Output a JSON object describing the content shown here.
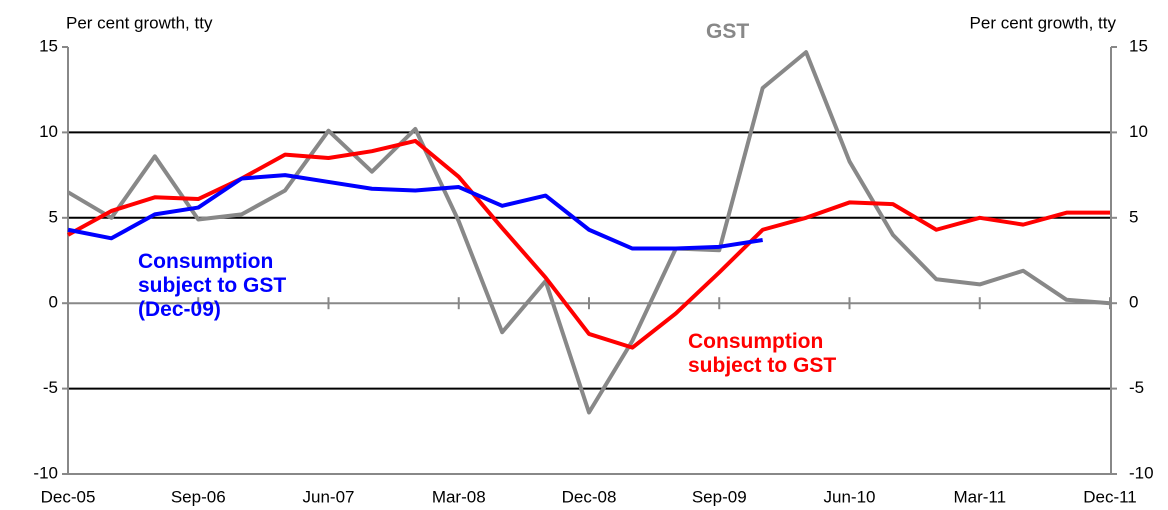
{
  "chart_data": {
    "type": "line",
    "y_label": "Per cent growth, tty",
    "y2_label": "Per cent growth, tty",
    "categories": [
      "Dec-05",
      null,
      null,
      "Sep-06",
      null,
      null,
      "Jun-07",
      null,
      null,
      "Mar-08",
      null,
      null,
      "Dec-08",
      null,
      null,
      "Sep-09",
      null,
      null,
      "Jun-10",
      null,
      null,
      "Mar-11",
      null,
      null,
      "Dec-11"
    ],
    "series": [
      {
        "name": "GST",
        "color": "#888888",
        "values": [
          6.5,
          5.0,
          8.6,
          4.9,
          5.2,
          6.6,
          10.1,
          7.7,
          10.2,
          4.8,
          -1.7,
          1.3,
          -6.4,
          -2.2,
          3.2,
          3.1,
          12.6,
          14.7,
          8.3,
          4.0,
          1.4,
          1.1,
          1.9,
          0.2,
          0.0
        ]
      },
      {
        "name": "Consumption subject to GST",
        "color": "#ff0000",
        "values": [
          4.0,
          5.4,
          6.2,
          6.1,
          7.3,
          8.7,
          8.5,
          8.9,
          9.5,
          7.4,
          4.4,
          1.5,
          -1.8,
          -2.6,
          -0.6,
          1.8,
          4.3,
          5.0,
          5.9,
          5.8,
          4.3,
          5.0,
          4.6,
          5.3,
          5.3
        ]
      },
      {
        "name": "Consumption subject to GST (Dec-09)",
        "color": "#0000ff",
        "values": [
          4.3,
          3.8,
          5.2,
          5.6,
          7.3,
          7.5,
          7.1,
          6.7,
          6.6,
          6.8,
          5.7,
          6.3,
          4.3,
          3.2,
          3.2,
          3.3,
          3.7,
          null,
          null,
          null,
          null,
          null,
          null,
          null,
          null
        ]
      }
    ],
    "ylim": [
      -10,
      15
    ],
    "yticks": [
      -10,
      -5,
      0,
      5,
      10,
      15
    ],
    "y2lim": [
      -10,
      15
    ],
    "y2ticks": [
      -10,
      -5,
      0,
      5,
      10,
      15
    ],
    "grid": true
  }
}
